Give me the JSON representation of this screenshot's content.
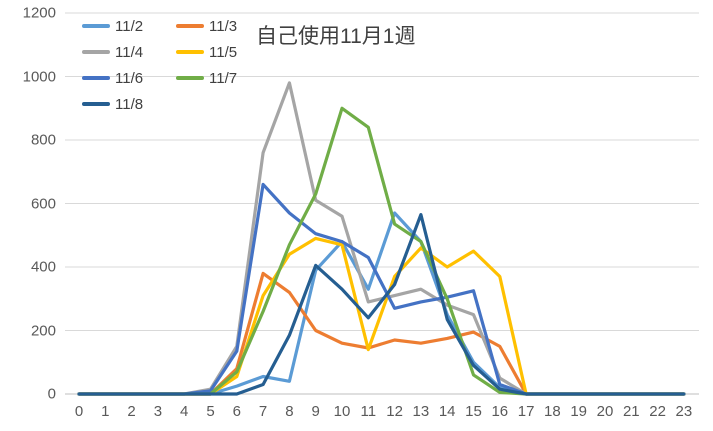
{
  "title": "自己使用11月1週",
  "axes": {
    "y_tick_labels": [
      "0",
      "200",
      "400",
      "600",
      "800",
      "1000",
      "1200"
    ],
    "x_tick_labels": [
      "0",
      "1",
      "2",
      "3",
      "4",
      "5",
      "6",
      "7",
      "8",
      "9",
      "10",
      "11",
      "12",
      "13",
      "14",
      "15",
      "16",
      "17",
      "18",
      "19",
      "20",
      "21",
      "22",
      "23"
    ]
  },
  "colors": {
    "gridline": "#D9D9D9",
    "axis_line": "#BFBFBF",
    "tick_text": "#595959",
    "title_text": "#404040"
  },
  "legend": {
    "items": [
      {
        "label": "11/2",
        "color": "#5B9BD5"
      },
      {
        "label": "11/3",
        "color": "#ED7D31"
      },
      {
        "label": "11/4",
        "color": "#A5A5A5"
      },
      {
        "label": "11/5",
        "color": "#FFC000"
      },
      {
        "label": "11/6",
        "color": "#4472C4"
      },
      {
        "label": "11/7",
        "color": "#70AD47"
      },
      {
        "label": "11/8",
        "color": "#255E91"
      }
    ]
  },
  "chart_data": {
    "type": "line",
    "title": "自己使用11月1週",
    "xlabel": "",
    "ylabel": "",
    "x": [
      0,
      1,
      2,
      3,
      4,
      5,
      6,
      7,
      8,
      9,
      10,
      11,
      12,
      13,
      14,
      15,
      16,
      17,
      18,
      19,
      20,
      21,
      22,
      23
    ],
    "ylim": [
      0,
      1200
    ],
    "yticks": [
      0,
      200,
      400,
      600,
      800,
      1000,
      1200
    ],
    "grid": true,
    "legend_position": "top-left-two-columns",
    "series": [
      {
        "name": "11/2",
        "color": "#5B9BD5",
        "values": [
          0,
          0,
          0,
          0,
          0,
          0,
          25,
          55,
          40,
          390,
          480,
          330,
          570,
          480,
          250,
          100,
          20,
          0,
          0,
          0,
          0,
          0,
          0,
          0
        ]
      },
      {
        "name": "11/3",
        "color": "#ED7D31",
        "values": [
          0,
          0,
          0,
          0,
          0,
          0,
          80,
          380,
          320,
          200,
          160,
          145,
          170,
          160,
          175,
          195,
          150,
          0,
          0,
          0,
          0,
          0,
          0,
          0
        ]
      },
      {
        "name": "11/4",
        "color": "#A5A5A5",
        "values": [
          0,
          0,
          0,
          0,
          0,
          15,
          150,
          760,
          980,
          610,
          560,
          290,
          310,
          330,
          280,
          250,
          50,
          0,
          0,
          0,
          0,
          0,
          0,
          0
        ]
      },
      {
        "name": "11/5",
        "color": "#FFC000",
        "values": [
          0,
          0,
          0,
          0,
          0,
          0,
          55,
          310,
          440,
          490,
          470,
          140,
          370,
          460,
          400,
          450,
          370,
          0,
          0,
          0,
          0,
          0,
          0,
          0
        ]
      },
      {
        "name": "11/6",
        "color": "#4472C4",
        "values": [
          0,
          0,
          0,
          0,
          0,
          10,
          135,
          660,
          570,
          505,
          480,
          430,
          270,
          290,
          305,
          325,
          30,
          0,
          0,
          0,
          0,
          0,
          0,
          0
        ]
      },
      {
        "name": "11/7",
        "color": "#70AD47",
        "values": [
          0,
          0,
          0,
          0,
          0,
          0,
          70,
          260,
          470,
          630,
          900,
          840,
          535,
          480,
          300,
          60,
          5,
          0,
          0,
          0,
          0,
          0,
          0,
          0
        ]
      },
      {
        "name": "11/8",
        "color": "#255E91",
        "values": [
          0,
          0,
          0,
          0,
          0,
          0,
          0,
          30,
          185,
          405,
          330,
          240,
          345,
          565,
          235,
          90,
          15,
          0,
          0,
          0,
          0,
          0,
          0,
          0
        ]
      }
    ]
  }
}
